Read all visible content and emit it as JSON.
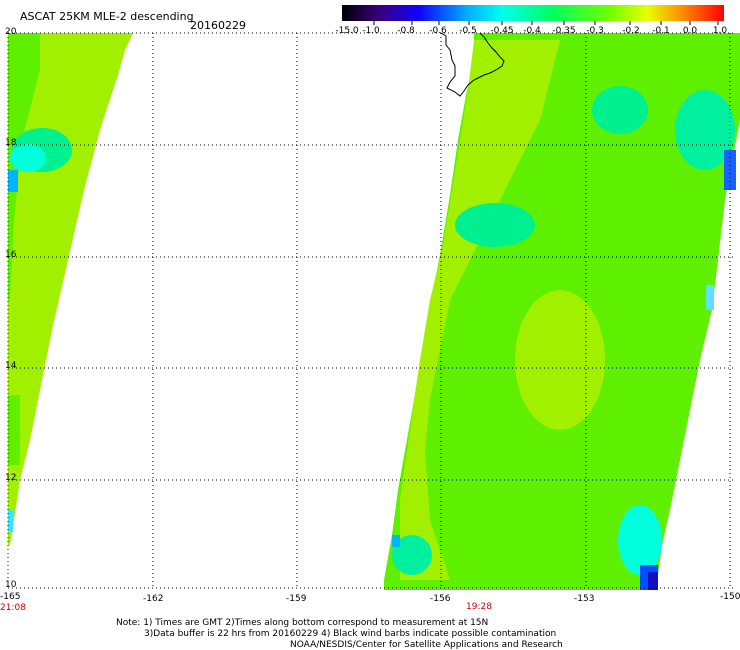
{
  "header": {
    "title": "ASCAT 25KM MLE-2 descending",
    "date": "20160229"
  },
  "colorbar": {
    "labels": [
      "-15.0",
      "-1.0",
      "-0.8",
      "-0.6",
      "-0.5",
      "-0.45",
      "-0.4",
      "-0.35",
      "-0.3",
      "-0.2",
      "-0.1",
      "0.0",
      "1.0"
    ]
  },
  "axes": {
    "x_ticks": [
      "-165",
      "-162",
      "-159",
      "-156",
      "-153",
      "-150"
    ],
    "y_ticks": [
      "20",
      "18",
      "16",
      "14",
      "12",
      "10"
    ]
  },
  "pass_times": {
    "left": "21:08",
    "center": "19:28"
  },
  "notes": {
    "line1": "Note: 1) Times are GMT 2)Times along bottom correspond to measurement at 15N",
    "line2": "3)Data buffer is 22 hrs from 20160229 4) Black wind barbs indicate possible contamination",
    "line3": "NOAA/NESDIS/Center for Satellite Applications and Research"
  },
  "colors": {
    "dominant_green": "#5ef000",
    "yellow_green": "#a0f000",
    "cyan": "#00ffdd",
    "blue": "#0050ff"
  }
}
